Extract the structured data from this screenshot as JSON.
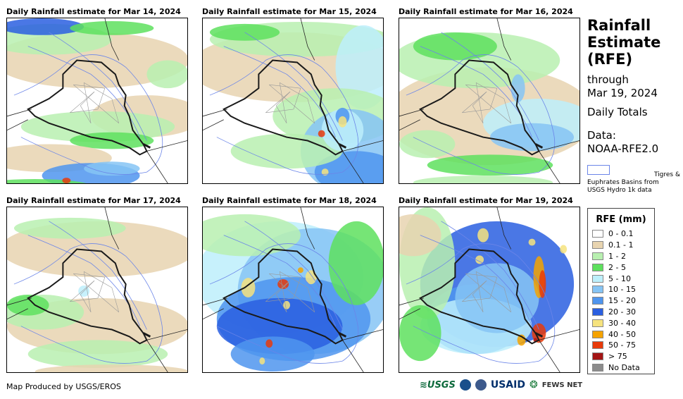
{
  "panels": [
    {
      "title": "Daily Rainfall estimate for Mar 14, 2024",
      "scene": 0
    },
    {
      "title": "Daily Rainfall estimate for Mar 15, 2024",
      "scene": 1
    },
    {
      "title": "Daily Rainfall estimate for Mar 16, 2024",
      "scene": 2
    },
    {
      "title": "Daily Rainfall estimate for Mar 17, 2024",
      "scene": 3
    },
    {
      "title": "Daily Rainfall estimate for Mar 18, 2024",
      "scene": 4
    },
    {
      "title": "Daily Rainfall estimate for Mar 19, 2024",
      "scene": 5
    }
  ],
  "header": {
    "title_line1": "Rainfall",
    "title_line2": "Estimate",
    "title_line3": "(RFE)",
    "through_label": "through",
    "through_date": "Mar 19, 2024",
    "totals_label": "Daily Totals",
    "data_label": "Data:",
    "data_source": "NOAA-RFE2.0"
  },
  "basin_note": {
    "line1": "Tigres &",
    "line2": "Euphrates Basins from",
    "line3": "USGS Hydro 1k data",
    "color": "#6b85e8"
  },
  "legend": {
    "title": "RFE (mm)",
    "items": [
      {
        "label": "0 - 0.1",
        "color": "#ffffff"
      },
      {
        "label": "0.1 - 1",
        "color": "#e8d4b0"
      },
      {
        "label": "1 - 2",
        "color": "#b8f0b0"
      },
      {
        "label": "2 - 5",
        "color": "#5ee05e"
      },
      {
        "label": "5 - 10",
        "color": "#bdeffb"
      },
      {
        "label": "10 - 15",
        "color": "#86c4f4"
      },
      {
        "label": "15 - 20",
        "color": "#4f95ee"
      },
      {
        "label": "20 - 30",
        "color": "#2a5fe0"
      },
      {
        "label": "30 - 40",
        "color": "#f6e37e"
      },
      {
        "label": "40 - 50",
        "color": "#f5a300"
      },
      {
        "label": "50 - 75",
        "color": "#e83a0a"
      },
      {
        "label": "> 75",
        "color": "#a31515"
      },
      {
        "label": "No Data",
        "color": "#8c8c8c"
      }
    ]
  },
  "footer": {
    "credit": "Map Produced by USGS/EROS"
  },
  "logos": {
    "usgs": "≋USGS",
    "usaid": "USAID",
    "fews": "FEWS NET"
  }
}
